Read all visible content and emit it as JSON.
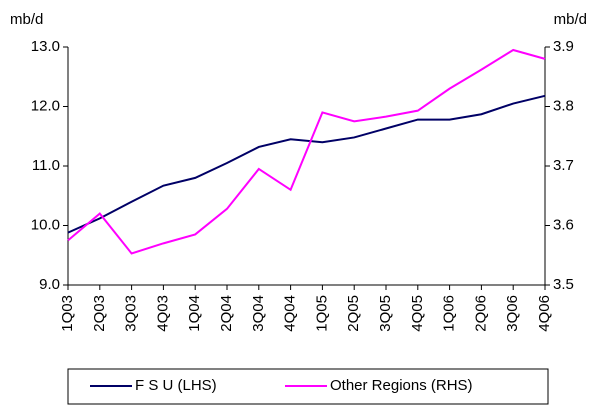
{
  "chart_data": {
    "type": "line",
    "y_label": "mb/d",
    "y2_label": "mb/d",
    "categories": [
      "1Q03",
      "2Q03",
      "3Q03",
      "4Q03",
      "1Q04",
      "2Q04",
      "3Q04",
      "4Q04",
      "1Q05",
      "2Q05",
      "3Q05",
      "4Q05",
      "1Q06",
      "2Q06",
      "3Q06",
      "4Q06"
    ],
    "series": [
      {
        "name": "F S U (LHS)",
        "color": "#000066",
        "values": [
          9.88,
          10.12,
          10.4,
          10.67,
          10.8,
          11.05,
          11.32,
          11.45,
          11.4,
          11.48,
          11.63,
          11.78,
          11.78,
          11.87,
          12.05,
          12.18
        ]
      },
      {
        "name": "Other Regions (RHS)",
        "color": "#ff00ff",
        "axis": "y2",
        "values": [
          3.575,
          3.62,
          3.553,
          3.57,
          3.585,
          3.628,
          3.695,
          3.66,
          3.79,
          3.775,
          3.783,
          3.793,
          3.83,
          3.862,
          3.895,
          3.88
        ]
      }
    ],
    "ylim": [
      9,
      13
    ],
    "yticks": [
      {
        "value": 9,
        "label": "9.0"
      },
      {
        "value": 10,
        "label": "10.0"
      },
      {
        "value": 11,
        "label": "11.0"
      },
      {
        "value": 12,
        "label": "12.0"
      },
      {
        "value": 13,
        "label": "13.0"
      }
    ],
    "y2lim": [
      3.5,
      3.9
    ],
    "y2ticks": [
      3.5,
      3.6,
      3.7,
      3.8,
      3.9
    ],
    "legend": "bottom"
  }
}
